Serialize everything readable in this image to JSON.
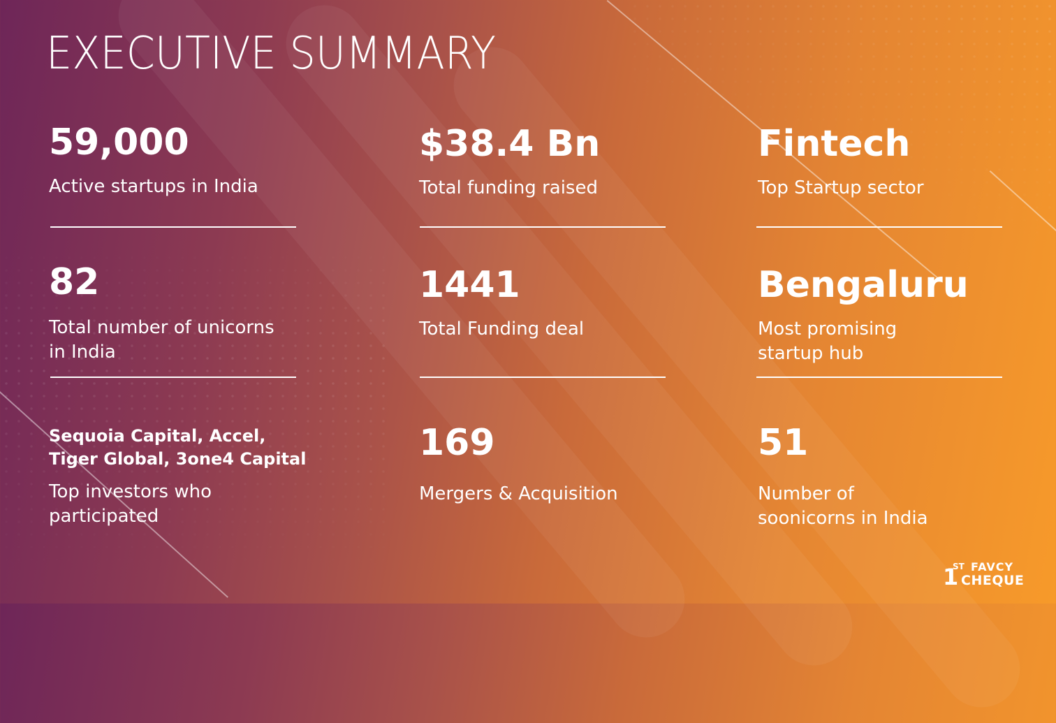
{
  "title": "EXECUTIVE SUMMARY",
  "stats": [
    {
      "value": "59,000",
      "label": "Active startups in India"
    },
    {
      "value": "$38.4 Bn",
      "label": "Total funding raised"
    },
    {
      "value": "Fintech",
      "label": "Top Startup sector"
    },
    {
      "value": "82",
      "label_lines": [
        "Total number of unicorns",
        "in India"
      ]
    },
    {
      "value": "1441",
      "label": "Total Funding deal"
    },
    {
      "value": "Bengaluru",
      "label_lines": [
        "Most promising",
        "startup hub"
      ]
    },
    {
      "value_lines": [
        "Sequoia Capital, Accel,",
        "Tiger Global, 3one4 Capital"
      ],
      "label_lines": [
        "Top investors who",
        "participated"
      ]
    },
    {
      "value": "169",
      "label": "Mergers & Acquisition"
    },
    {
      "value": "51",
      "label_lines": [
        "Number of",
        "soonicorns in India"
      ]
    }
  ],
  "logo": {
    "one": "1",
    "st": "ST",
    "favcy": "FAVCY",
    "cheque": "CHEQUE"
  },
  "colors": {
    "gradient_start": "#6e2658",
    "gradient_end": "#f79a2a",
    "text": "#ffffff"
  }
}
